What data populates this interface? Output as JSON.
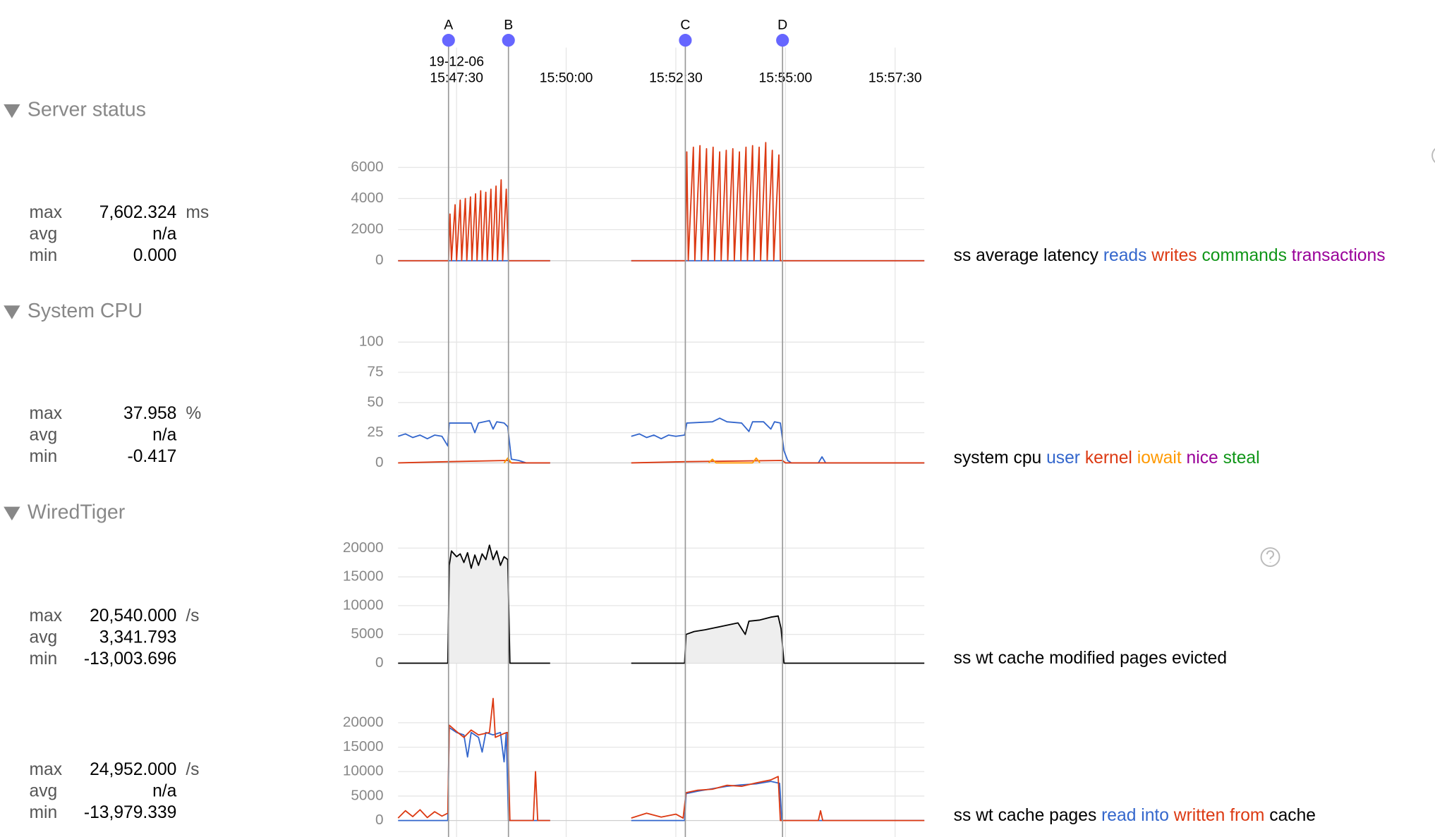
{
  "xaxis": {
    "xlim": [
      56770,
      57490
    ],
    "date": "19-12-06",
    "ticks": [
      {
        "value": 56850,
        "label": "15:47:30"
      },
      {
        "value": 57000,
        "label": "15:50:00"
      },
      {
        "value": 57150,
        "label": "15:52:30"
      },
      {
        "value": 57300,
        "label": "15:55:00"
      },
      {
        "value": 57450,
        "label": "15:57:30"
      }
    ]
  },
  "markers": [
    {
      "label": "A",
      "time": 56839
    },
    {
      "label": "B",
      "time": 56921
    },
    {
      "label": "C",
      "time": 57163
    },
    {
      "label": "D",
      "time": 57296
    }
  ],
  "sections": [
    {
      "title": "Server status",
      "charts": [
        {
          "type": "line",
          "legend_prefix": "ss average latency",
          "unit": "ms",
          "stats": [
            {
              "label": "max",
              "value": "7,602.324"
            },
            {
              "label": "avg",
              "value": "n/a"
            },
            {
              "label": "min",
              "value": "0.000"
            }
          ],
          "ylim": [
            0,
            8000
          ],
          "yticks": [
            0,
            2000,
            4000,
            6000
          ],
          "series": [
            {
              "name": "reads",
              "color": "#3366cc",
              "x": [
                56770,
                56978,
                null,
                57089,
                57490
              ],
              "values": [
                0,
                0,
                null,
                0,
                0
              ]
            },
            {
              "name": "writes",
              "color": "#dc3912",
              "x": [
                56770,
                56839,
                56841,
                56843,
                56848,
                56850,
                56855,
                56857,
                56862,
                56864,
                56869,
                56871,
                56876,
                56878,
                56883,
                56885,
                56890,
                56892,
                56897,
                56899,
                56904,
                56906,
                56911,
                56913,
                56918,
                56921,
                56978,
                null,
                57089,
                57163,
                57165,
                57167,
                57174,
                57176,
                57183,
                57185,
                57192,
                57194,
                57201,
                57203,
                57210,
                57212,
                57219,
                57221,
                57228,
                57230,
                57237,
                57239,
                57246,
                57248,
                57255,
                57257,
                57264,
                57266,
                57273,
                57275,
                57282,
                57284,
                57291,
                57293,
                57296,
                57490
              ],
              "values": [
                0,
                0,
                3000,
                0,
                3600,
                0,
                3900,
                0,
                4000,
                0,
                4100,
                0,
                4300,
                0,
                4500,
                0,
                4400,
                0,
                4600,
                0,
                4800,
                0,
                5200,
                0,
                4600,
                0,
                0,
                null,
                0,
                0,
                7000,
                0,
                7300,
                0,
                7400,
                0,
                7200,
                0,
                7300,
                0,
                7000,
                0,
                7100,
                0,
                7200,
                0,
                7000,
                0,
                7300,
                0,
                7400,
                0,
                7300,
                0,
                7600,
                0,
                7100,
                0,
                6800,
                0,
                0,
                0
              ]
            },
            {
              "name": "commands",
              "color": "#109618"
            },
            {
              "name": "transactions",
              "color": "#990099"
            }
          ]
        }
      ]
    },
    {
      "title": "System CPU",
      "charts": [
        {
          "type": "line",
          "legend_prefix": "system cpu",
          "unit": "%",
          "stats": [
            {
              "label": "max",
              "value": "37.958"
            },
            {
              "label": "avg",
              "value": "n/a"
            },
            {
              "label": "min",
              "value": "-0.417"
            }
          ],
          "ylim": [
            0,
            100
          ],
          "yticks": [
            0,
            25,
            50,
            75,
            100
          ],
          "series": [
            {
              "name": "user",
              "color": "#3366cc",
              "x": [
                56770,
                56780,
                56790,
                56800,
                56810,
                56820,
                56830,
                56838,
                56840,
                56860,
                56870,
                56875,
                56880,
                56895,
                56900,
                56905,
                56915,
                56920,
                56925,
                56935,
                56945,
                56978,
                null,
                57089,
                57100,
                57110,
                57120,
                57130,
                57140,
                57150,
                57162,
                57165,
                57200,
                57210,
                57220,
                57240,
                57250,
                57255,
                57270,
                57280,
                57285,
                57293,
                57298,
                57303,
                57308,
                57345,
                57350,
                57355,
                57490
              ],
              "values": [
                22,
                24,
                21,
                23,
                20,
                23,
                22,
                14,
                33,
                33,
                33,
                25,
                33,
                35,
                28,
                34,
                33,
                30,
                3,
                2,
                0,
                0,
                null,
                22,
                24,
                21,
                23,
                20,
                23,
                22,
                23,
                33,
                34,
                37,
                34,
                33,
                26,
                34,
                34,
                28,
                34,
                33,
                10,
                2,
                0,
                0,
                5,
                0,
                0
              ]
            },
            {
              "name": "kernel",
              "color": "#dc3912",
              "x": [
                56770,
                56840,
                56920,
                56925,
                56978,
                null,
                57089,
                57165,
                57296,
                57300,
                57490
              ],
              "values": [
                0,
                1,
                2,
                0,
                0,
                null,
                0,
                1,
                2,
                0,
                0
              ]
            },
            {
              "name": "iowait",
              "color": "#ff9900",
              "x": [
                56915,
                56920,
                56925,
                null,
                57195,
                57200,
                57205,
                57255,
                57260,
                57265
              ],
              "values": [
                0,
                4,
                0,
                null,
                0,
                3,
                0,
                0,
                4,
                0
              ]
            },
            {
              "name": "nice",
              "color": "#990099"
            },
            {
              "name": "steal",
              "color": "#109618"
            }
          ]
        }
      ]
    },
    {
      "title": "WiredTiger",
      "charts": [
        {
          "type": "area",
          "legend_prefix": "ss wt cache modified pages evicted",
          "unit": "/s",
          "stats": [
            {
              "label": "max",
              "value": "20,540.000"
            },
            {
              "label": "avg",
              "value": "3,341.793"
            },
            {
              "label": "min",
              "value": "-13,003.696"
            }
          ],
          "ylim": [
            0,
            24000
          ],
          "yticks": [
            0,
            5000,
            10000,
            15000,
            20000
          ],
          "series": [
            {
              "color": "#000000",
              "fill": "#eeeeee",
              "x": [
                56770,
                56838,
                56840,
                56843,
                56850,
                56855,
                56860,
                56865,
                56870,
                56875,
                56880,
                56885,
                56890,
                56895,
                56900,
                56905,
                56910,
                56915,
                56920,
                56923,
                56978,
                null,
                57089,
                57162,
                57164,
                57175,
                57190,
                57205,
                57220,
                57235,
                57245,
                57250,
                57265,
                57280,
                57290,
                57294,
                57298,
                57490
              ],
              "values": [
                0,
                0,
                17000,
                19500,
                18500,
                19000,
                17500,
                19200,
                16500,
                18800,
                17000,
                19000,
                18000,
                20500,
                18000,
                19500,
                17000,
                18500,
                18000,
                0,
                0,
                null,
                0,
                0,
                5000,
                5500,
                5800,
                6200,
                6600,
                7000,
                5000,
                7300,
                7500,
                8000,
                8200,
                6000,
                0,
                0
              ]
            }
          ]
        },
        {
          "type": "line",
          "legend_prefix": "ss wt cache pages",
          "legend_suffix": "cache",
          "unit": "/s",
          "stats": [
            {
              "label": "max",
              "value": "24,952.000"
            },
            {
              "label": "avg",
              "value": "n/a"
            },
            {
              "label": "min",
              "value": "-13,979.339"
            }
          ],
          "ylim": [
            0,
            26000
          ],
          "yticks": [
            0,
            5000,
            10000,
            15000,
            20000
          ],
          "series": [
            {
              "name": "read into",
              "color": "#3366cc",
              "x": [
                56770,
                56838,
                56840,
                56850,
                56860,
                56865,
                56870,
                56880,
                56885,
                56890,
                56900,
                56910,
                56915,
                56918,
                56921,
                56978,
                null,
                57089,
                57162,
                57164,
                57180,
                57200,
                57220,
                57240,
                57260,
                57280,
                57292,
                57295,
                57490
              ],
              "values": [
                0,
                0,
                19000,
                18000,
                17500,
                13000,
                18000,
                17000,
                14000,
                18000,
                17500,
                18000,
                12000,
                18000,
                0,
                0,
                null,
                0,
                0,
                5500,
                6000,
                6500,
                7000,
                7300,
                7500,
                8000,
                7600,
                0,
                0
              ]
            },
            {
              "name": "written from",
              "color": "#dc3912",
              "x": [
                56770,
                56780,
                56790,
                56800,
                56810,
                56820,
                56830,
                56838,
                56840,
                56850,
                56860,
                56870,
                56880,
                56895,
                56900,
                56903,
                56915,
                56920,
                56923,
                56955,
                56958,
                56961,
                56978,
                null,
                57089,
                57110,
                57130,
                57150,
                57160,
                57164,
                57180,
                57200,
                57220,
                57240,
                57260,
                57280,
                57290,
                57293,
                57345,
                57348,
                57351,
                57490
              ],
              "values": [
                500,
                2000,
                800,
                2200,
                600,
                1800,
                900,
                1500,
                19500,
                18200,
                17000,
                18500,
                17500,
                18000,
                24952,
                17000,
                17800,
                18000,
                0,
                0,
                10000,
                0,
                0,
                null,
                500,
                1500,
                700,
                1300,
                500,
                5700,
                6200,
                6400,
                7200,
                7000,
                7700,
                8300,
                9000,
                0,
                0,
                2000,
                0,
                0
              ]
            }
          ]
        }
      ]
    }
  ]
}
